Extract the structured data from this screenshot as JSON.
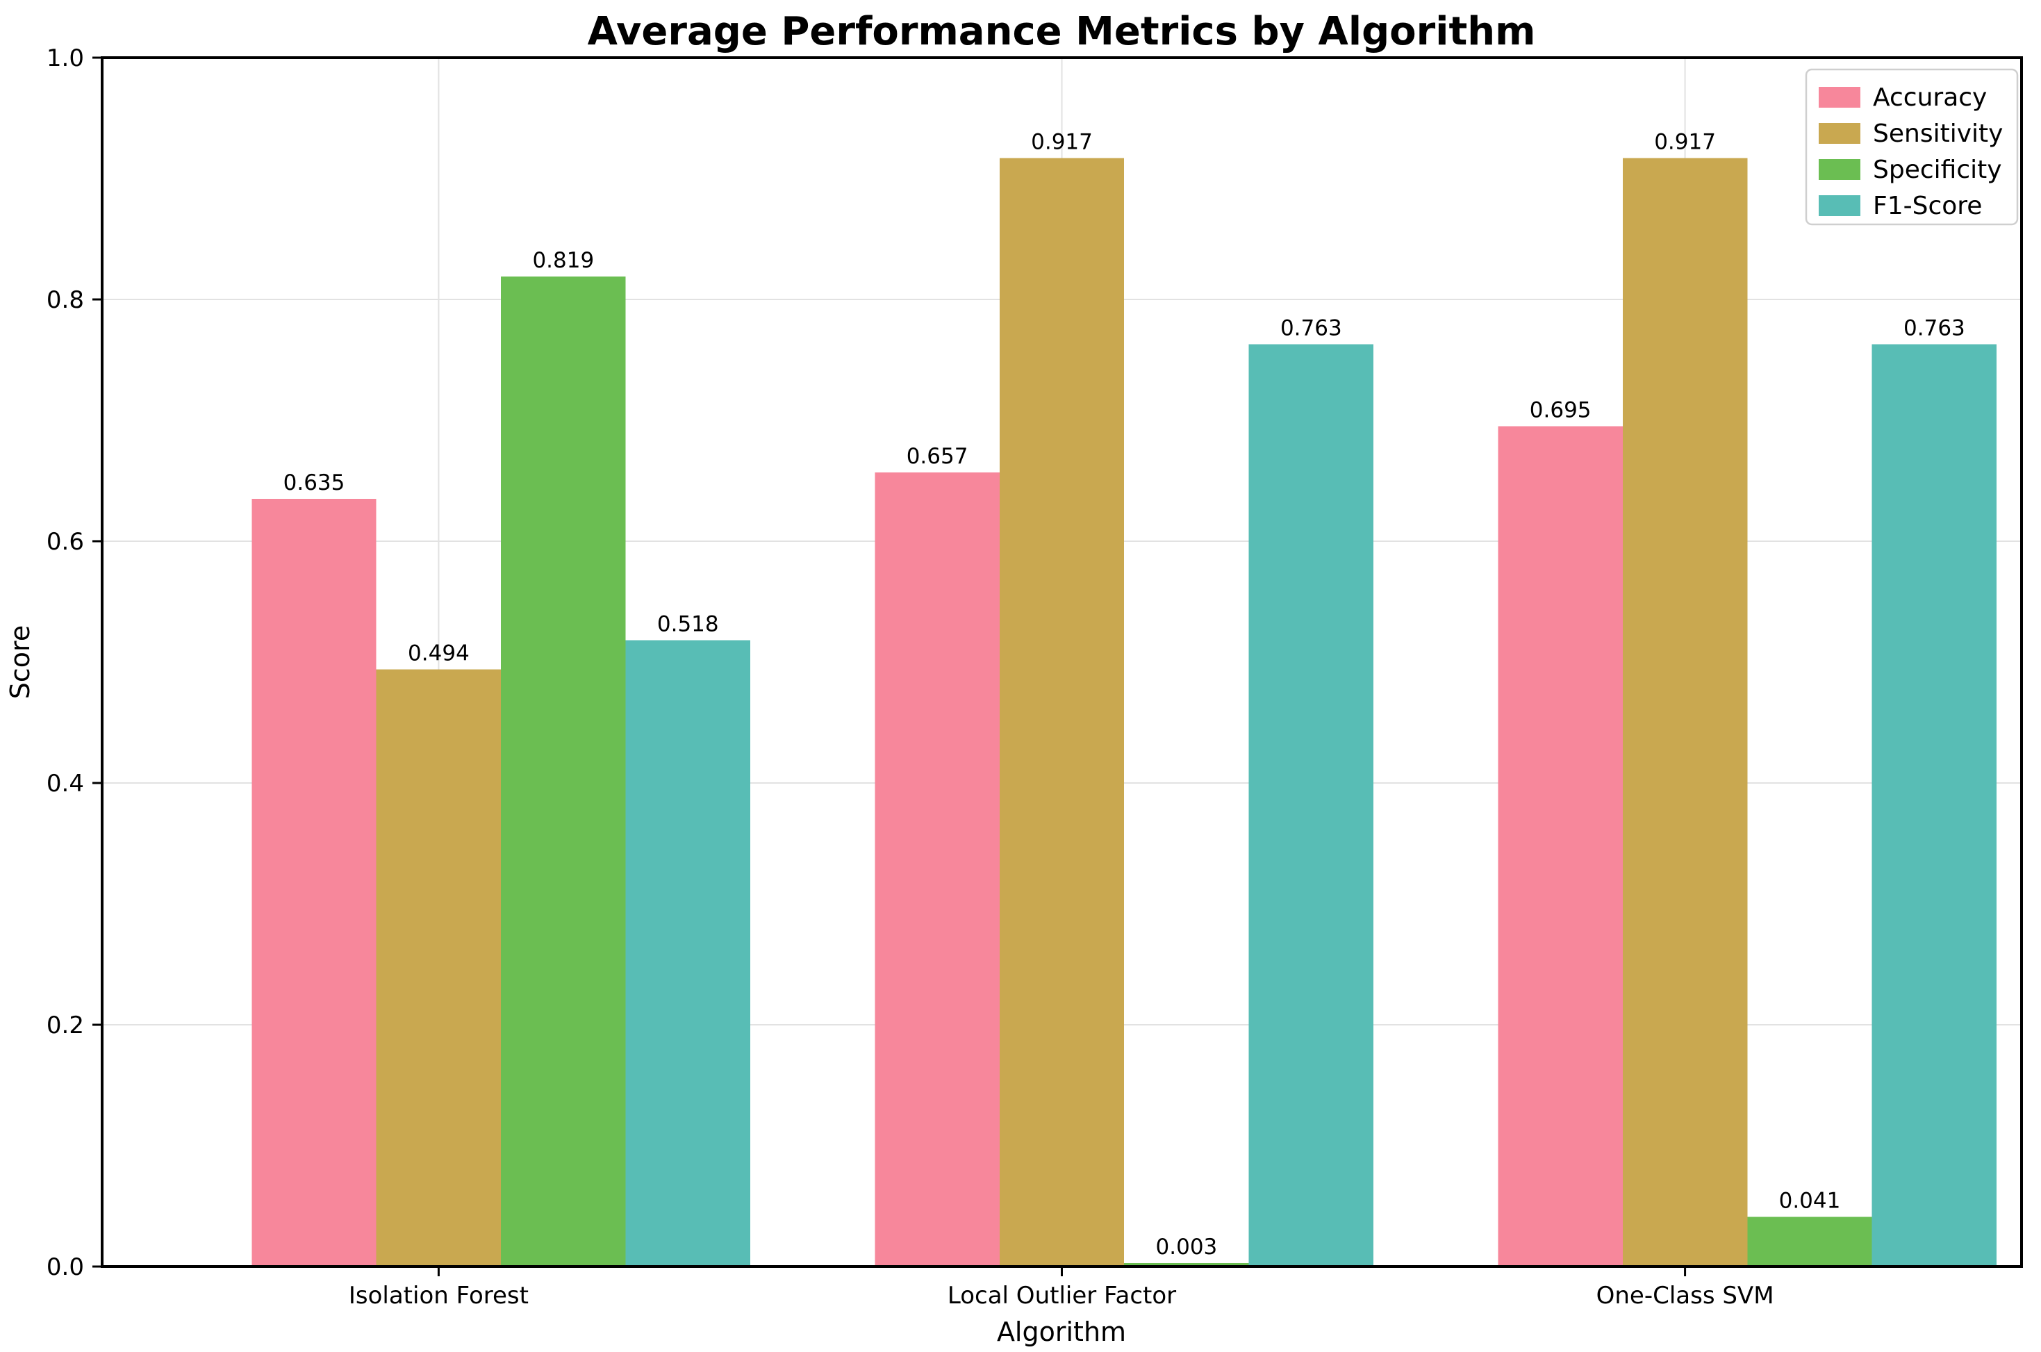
{
  "figure": {
    "background": "#ffffff",
    "axis_color": "#000000",
    "grid_color": "#e2e2e2",
    "legend_border_color": "#cfcfcf"
  },
  "chart_data": {
    "type": "bar",
    "title": "Average Performance Metrics by Algorithm",
    "xlabel": "Algorithm",
    "ylabel": "Score",
    "ylim": [
      0.0,
      1.0
    ],
    "ytick_labels": [
      "0.0",
      "0.2",
      "0.4",
      "0.6",
      "0.8",
      "1.0"
    ],
    "categories": [
      "Isolation Forest",
      "Local Outlier Factor",
      "One-Class SVM"
    ],
    "series": [
      {
        "name": "Accuracy",
        "color": "#f7879b",
        "values": [
          0.635,
          0.657,
          0.695
        ]
      },
      {
        "name": "Sensitivity",
        "color": "#c9a850",
        "values": [
          0.494,
          0.917,
          0.917
        ]
      },
      {
        "name": "Specificity",
        "color": "#6bbe52",
        "values": [
          0.819,
          0.003,
          0.041
        ]
      },
      {
        "name": "F1-Score",
        "color": "#58bdb5",
        "values": [
          0.518,
          0.763,
          0.763
        ]
      }
    ],
    "bar_label_decimals": 3,
    "grid": true,
    "legend_position": "upper right"
  }
}
